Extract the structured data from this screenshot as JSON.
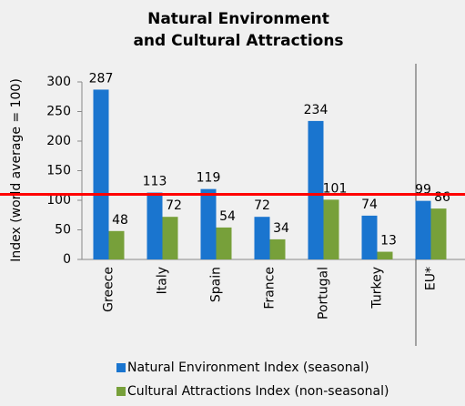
{
  "chart_data": {
    "type": "bar",
    "title": [
      "Natural Environment",
      "and Cultural Attractions"
    ],
    "y_label": "Index (world average = 100)",
    "categories": [
      "Greece",
      "Italy",
      "Spain",
      "France",
      "Portugal",
      "Turkey",
      "EU*"
    ],
    "series": [
      {
        "name": "Natural Environment Index (seasonal)",
        "color": "#1a75cf",
        "values": [
          287,
          113,
          119,
          72,
          234,
          74,
          99
        ]
      },
      {
        "name": "Cultural Attractions Index (non-seasonal)",
        "color": "#77a03a",
        "values": [
          48,
          72,
          54,
          34,
          101,
          13,
          86
        ]
      }
    ],
    "reference_line": {
      "value": 110,
      "color": "#ff0000"
    },
    "ylim": [
      0,
      300
    ],
    "yticks": [
      0,
      50,
      100,
      150,
      200,
      250,
      300
    ],
    "grid": false
  }
}
